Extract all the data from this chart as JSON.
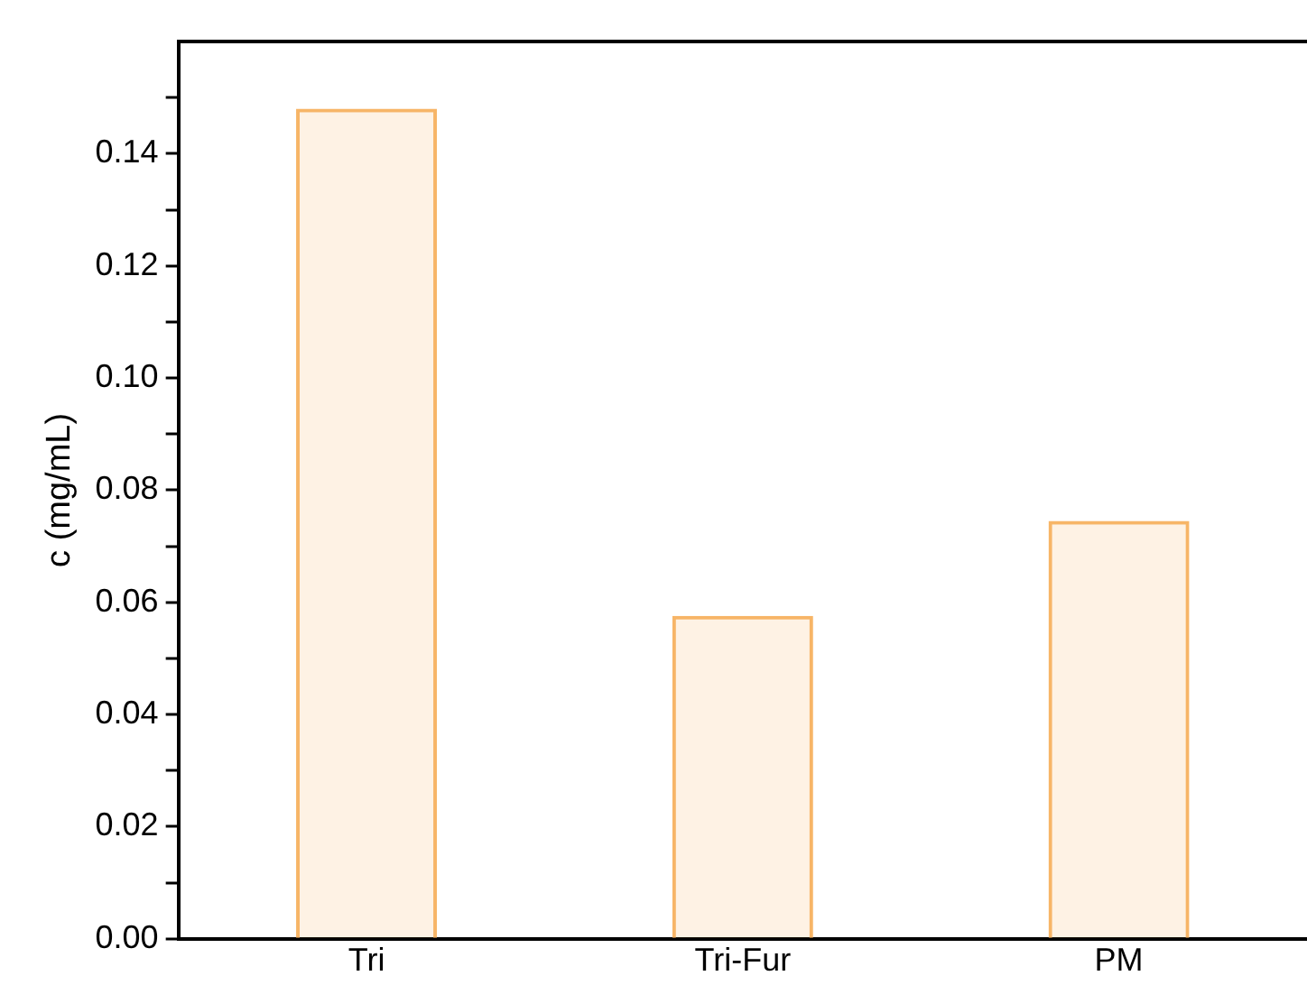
{
  "chart_data": {
    "type": "bar",
    "ylabel": "c (mg/mL)",
    "categories": [
      "Tri",
      "Tri-Fur",
      "PM"
    ],
    "series": [
      {
        "color": "#f7b567",
        "values": [
          0.148,
          0.0576,
          0.0745
        ]
      }
    ],
    "ylim": [
      0,
      0.16
    ],
    "yticks": [
      {
        "value": 0,
        "label": "0.00"
      },
      {
        "value": 0.01,
        "label": null
      },
      {
        "value": 0.02,
        "label": "0.02"
      },
      {
        "value": 0.03,
        "label": null
      },
      {
        "value": 0.04,
        "label": "0.04"
      },
      {
        "value": 0.05,
        "label": null
      },
      {
        "value": 0.06,
        "label": "0.06"
      },
      {
        "value": 0.07,
        "label": null
      },
      {
        "value": 0.08,
        "label": "0.08"
      },
      {
        "value": 0.09,
        "label": null
      },
      {
        "value": 0.1,
        "label": "0.10"
      },
      {
        "value": 0.11,
        "label": null
      },
      {
        "value": 0.12,
        "label": "0.12"
      },
      {
        "value": 0.13,
        "label": null
      },
      {
        "value": 0.14,
        "label": "0.14"
      },
      {
        "value": 0.15,
        "label": null
      }
    ],
    "grid": false,
    "legend": false
  }
}
